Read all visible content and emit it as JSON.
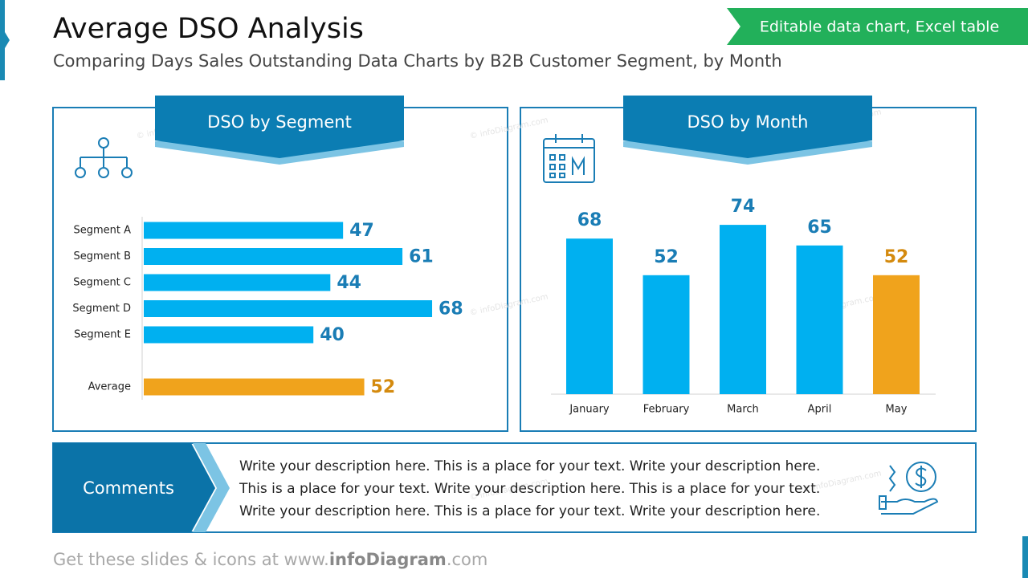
{
  "header": {
    "title": "Average DSO Analysis",
    "subtitle": "Comparing Days Sales Outstanding Data Charts by B2B Customer Segment, by Month",
    "badge": "Editable data chart, Excel table"
  },
  "watermark": "© infoDiagram.com",
  "chart_data": [
    {
      "type": "bar",
      "orientation": "horizontal",
      "title": "DSO by Segment",
      "categories": [
        "Segment A",
        "Segment B",
        "Segment C",
        "Segment D",
        "Segment E",
        null,
        "Average"
      ],
      "values": [
        47,
        61,
        44,
        68,
        40,
        null,
        52
      ],
      "colors": [
        "#00b0f0",
        "#00b0f0",
        "#00b0f0",
        "#00b0f0",
        "#00b0f0",
        null,
        "#f0a31c"
      ],
      "label_colors": [
        "#1a7db5",
        "#1a7db5",
        "#1a7db5",
        "#1a7db5",
        "#1a7db5",
        null,
        "#d48a0e"
      ]
    },
    {
      "type": "bar",
      "orientation": "vertical",
      "title": "DSO by Month",
      "categories": [
        "January",
        "February",
        "March",
        "April",
        "May"
      ],
      "values": [
        68,
        52,
        74,
        65,
        52
      ],
      "colors": [
        "#00b0f0",
        "#00b0f0",
        "#00b0f0",
        "#00b0f0",
        "#f0a31c"
      ],
      "label_colors": [
        "#1a7db5",
        "#1a7db5",
        "#1a7db5",
        "#1a7db5",
        "#d48a0e"
      ]
    }
  ],
  "comments": {
    "label": "Comments",
    "lines": [
      "Write your description here. This is a place for your text. Write your description here.",
      "This is a place for your text. Write your description here. This is a place for your text.",
      "Write your description here. This is a place for your text. Write your description here."
    ]
  },
  "footer": {
    "prefix": "Get these slides & icons at www.",
    "brand": "infoDiagram",
    "suffix": ".com"
  }
}
